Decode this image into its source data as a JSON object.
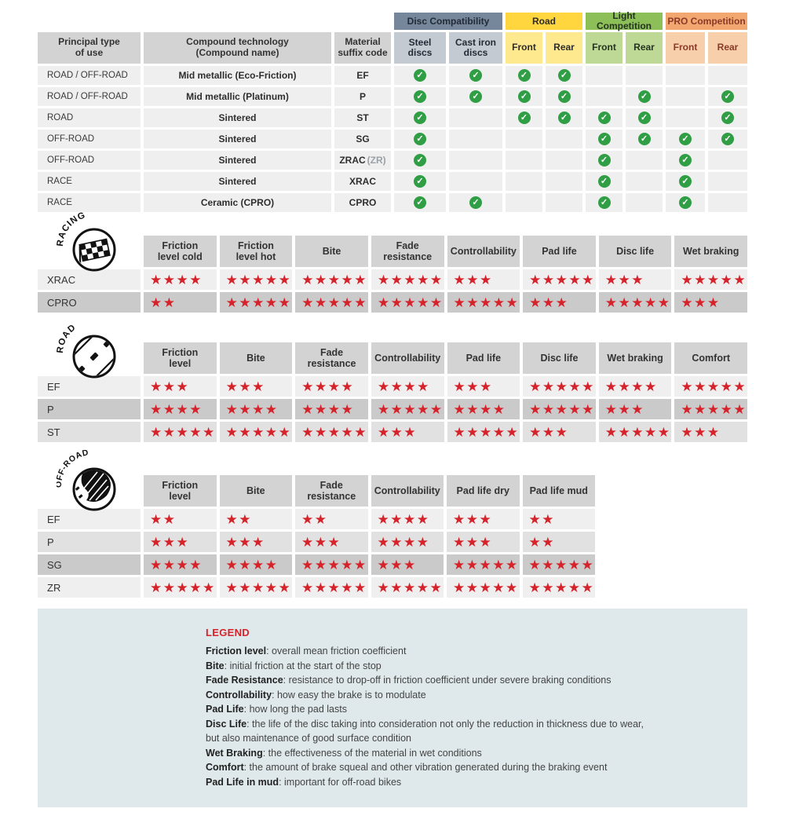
{
  "colors": {
    "star-red": "#d6232b",
    "check-green": "#2f9e44",
    "header-gray": "#d3d3d3",
    "row-light": "#efefef",
    "row-medium": "#e1e1e1",
    "row-dark": "#cacaca",
    "slate": "#76879c",
    "slate-sub": "#c4cad2",
    "road-yellow": "#ffd63e",
    "road-yellow-sub": "#ffe98e",
    "comp-green": "#8cbf58",
    "comp-green-sub": "#bed996",
    "pro-orange": "#f2a770",
    "pro-orange-sub": "#f8cfab",
    "legend-bg": "#dfe8eb",
    "text-dark": "#333333"
  },
  "compat": {
    "col_headers": [
      "Principal type\nof use",
      "Compound technology\n(Compound name)",
      "Material\nsuffix code"
    ],
    "groups": [
      {
        "label": "Disc Compatibility",
        "bg": "slate",
        "sub_bg": "slate-sub",
        "text": "#222a35",
        "sub": [
          "Steel\ndiscs",
          "Cast iron\ndiscs"
        ]
      },
      {
        "label": "Road",
        "bg": "road-yellow",
        "sub_bg": "road-yellow-sub",
        "text": "#2c2c2c",
        "sub": [
          "Front",
          "Rear"
        ]
      },
      {
        "label": "Light Competition",
        "bg": "comp-green",
        "sub_bg": "comp-green-sub",
        "text": "#253321",
        "sub": [
          "Front",
          "Rear"
        ]
      },
      {
        "label": "PRO Competition",
        "bg": "pro-orange",
        "sub_bg": "pro-orange-sub",
        "text": "#8a3a28",
        "sub": [
          "Front",
          "Rear"
        ]
      }
    ],
    "rows": [
      {
        "use": "ROAD / OFF-ROAD",
        "compound": "Mid metallic (Eco-Friction)",
        "code": "EF",
        "checks": [
          1,
          1,
          1,
          1,
          0,
          0,
          0,
          0
        ]
      },
      {
        "use": "ROAD / OFF-ROAD",
        "compound": "Mid metallic (Platinum)",
        "code": "P",
        "checks": [
          1,
          1,
          1,
          1,
          0,
          1,
          0,
          1
        ]
      },
      {
        "use": "ROAD",
        "compound": "Sintered",
        "code": "ST",
        "checks": [
          1,
          0,
          1,
          1,
          1,
          1,
          0,
          1
        ]
      },
      {
        "use": "OFF-ROAD",
        "compound": "Sintered",
        "code": "SG",
        "checks": [
          1,
          0,
          0,
          0,
          1,
          1,
          1,
          1
        ]
      },
      {
        "use": "OFF-ROAD",
        "compound": "Sintered",
        "code": "ZRAC",
        "code_suffix": "(ZR)",
        "checks": [
          1,
          0,
          0,
          0,
          1,
          0,
          1,
          0
        ]
      },
      {
        "use": "RACE",
        "compound": "Sintered",
        "code": "XRAC",
        "checks": [
          1,
          0,
          0,
          0,
          1,
          0,
          1,
          0
        ]
      },
      {
        "use": "RACE",
        "compound": "Ceramic (CPRO)",
        "code": "CPRO",
        "checks": [
          1,
          1,
          0,
          0,
          1,
          0,
          1,
          0
        ]
      }
    ]
  },
  "sections": [
    {
      "id": "racing",
      "icon_label": "RACING",
      "columns": [
        "Friction\nlevel cold",
        "Friction\nlevel hot",
        "Bite",
        "Fade\nresistance",
        "Controllability",
        "Pad life",
        "Disc life",
        "Wet braking"
      ],
      "rows": [
        {
          "code": "XRAC",
          "shade": "light",
          "stars": [
            4,
            5,
            5,
            5,
            3,
            5,
            3,
            5
          ]
        },
        {
          "code": "CPRO",
          "shade": "dark",
          "stars": [
            2,
            5,
            5,
            5,
            5,
            3,
            5,
            3
          ]
        }
      ]
    },
    {
      "id": "road",
      "icon_label": "ROAD",
      "columns": [
        "Friction\nlevel",
        "Bite",
        "Fade\nresistance",
        "Controllability",
        "Pad life",
        "Disc life",
        "Wet braking",
        "Comfort"
      ],
      "rows": [
        {
          "code": "EF",
          "shade": "light",
          "stars": [
            3,
            3,
            4,
            4,
            3,
            5,
            4,
            5
          ]
        },
        {
          "code": "P",
          "shade": "dark",
          "stars": [
            4,
            4,
            4,
            5,
            4,
            5,
            3,
            5
          ]
        },
        {
          "code": "ST",
          "shade": "medium",
          "stars": [
            5,
            5,
            5,
            3,
            5,
            3,
            5,
            3
          ]
        }
      ]
    },
    {
      "id": "offroad",
      "icon_label": "OFF-ROAD",
      "columns": [
        "Friction\nlevel",
        "Bite",
        "Fade\nresistance",
        "Controllability",
        "Pad life dry",
        "Pad life mud"
      ],
      "rows": [
        {
          "code": "EF",
          "shade": "light",
          "stars": [
            2,
            2,
            2,
            4,
            3,
            2
          ]
        },
        {
          "code": "P",
          "shade": "medium",
          "stars": [
            3,
            3,
            3,
            4,
            3,
            2
          ]
        },
        {
          "code": "SG",
          "shade": "dark",
          "stars": [
            4,
            4,
            5,
            3,
            5,
            5
          ]
        },
        {
          "code": "ZR",
          "shade": "light",
          "stars": [
            5,
            5,
            5,
            5,
            5,
            5
          ]
        }
      ]
    }
  ],
  "legend": {
    "title": "LEGEND",
    "items": [
      {
        "term": "Friction level",
        "def": ": overall mean friction coefficient"
      },
      {
        "term": "Bite",
        "def": ": initial friction at the start of the stop"
      },
      {
        "term": "Fade Resistance",
        "def": ": resistance to drop-off in friction coefficient under severe braking conditions"
      },
      {
        "term": "Controllability",
        "def": ": how easy the brake is to modulate"
      },
      {
        "term": "Pad Life",
        "def": ": how long the pad lasts"
      },
      {
        "term": "Disc Life",
        "def": ": the life of the disc taking into consideration not only the reduction in thickness due to wear,"
      },
      {
        "term": "",
        "def": "but also maintenance of good surface condition"
      },
      {
        "term": "Wet Braking",
        "def": ": the effectiveness of the material in wet conditions"
      },
      {
        "term": "Comfort",
        "def": ": the amount of brake squeal and other vibration generated during the braking event"
      },
      {
        "term": "Pad Life in mud",
        "def": ": important for off-road bikes"
      }
    ]
  }
}
